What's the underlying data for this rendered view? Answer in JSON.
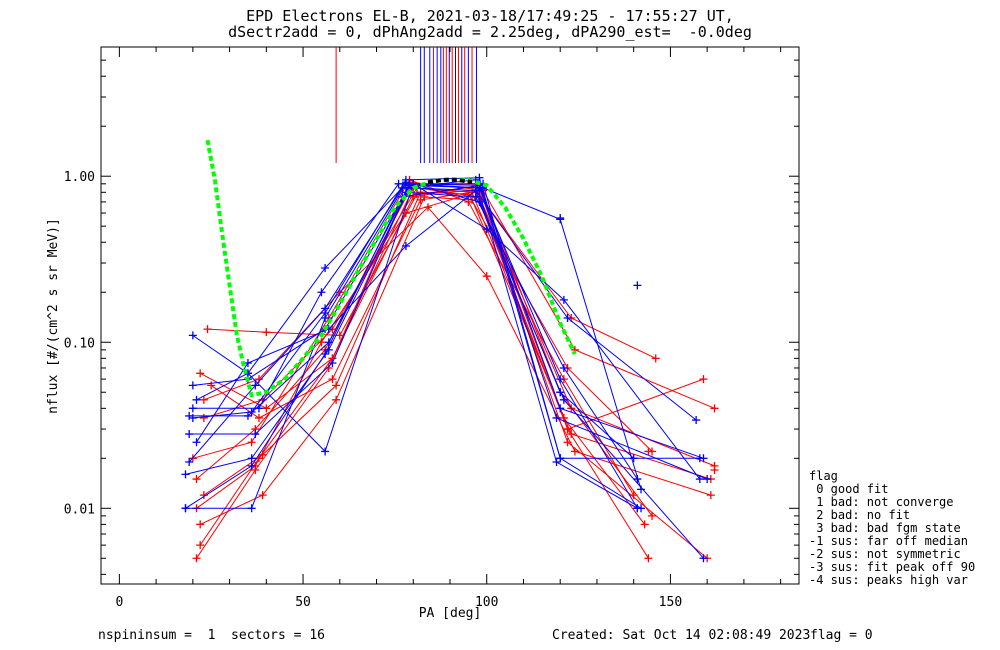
{
  "title": {
    "line1": "EPD Electrons EL-B, 2021-03-18/17:49:25 - 17:55:27 UT,",
    "line2": "dSectr2add = 0, dPhAng2add = 2.25deg, dPA290_est=  -0.0deg"
  },
  "footer": {
    "left": "nspininsum =  1  sectors = 16",
    "created": "Created: Sat Oct 14 02:08:49 2023",
    "flag": "flag = 0"
  },
  "legend": {
    "title": "flag",
    "items": [
      " 0 good fit",
      " 1 bad: not converge",
      " 2 bad: no fit",
      " 3 bad: bad fgm state",
      "-1 sus: far off median",
      "-2 sus: not symmetric",
      "-3 sus: fit peak off 90",
      "-4 sus: peaks high var"
    ]
  },
  "colors": {
    "red": "#ff0000",
    "blue": "#0000ff",
    "green": "#00ff00",
    "black": "#000000"
  },
  "chart_data": {
    "type": "line",
    "xlabel": "PA [deg]",
    "ylabel": "nflux [#/(cm^2 s sr MeV)]",
    "xlim": [
      -5,
      185
    ],
    "ylim": [
      0.0035,
      6.0
    ],
    "ylog": true,
    "xticks": [
      0,
      50,
      100,
      150
    ],
    "xtick_labels": [
      "0",
      "50",
      "100",
      "150"
    ],
    "yticks": [
      0.01,
      0.1,
      1.0
    ],
    "ytick_labels": [
      "0.01",
      "0.10",
      "1.00"
    ],
    "series": [
      {
        "color": "red",
        "x": [
          21,
          37,
          57,
          79,
          98,
          122,
          144
        ],
        "y": [
          0.005,
          0.017,
          0.07,
          0.92,
          0.83,
          0.03,
          0.005
        ]
      },
      {
        "color": "red",
        "x": [
          22,
          38,
          58,
          80,
          96,
          121,
          143
        ],
        "y": [
          0.006,
          0.02,
          0.08,
          0.85,
          0.8,
          0.035,
          0.008
        ]
      },
      {
        "color": "red",
        "x": [
          23,
          39,
          59,
          82,
          95,
          122,
          145
        ],
        "y": [
          0.012,
          0.021,
          0.055,
          0.8,
          0.78,
          0.07,
          0.022
        ]
      },
      {
        "color": "red",
        "x": [
          24,
          40,
          60,
          81,
          97,
          123,
          146
        ],
        "y": [
          0.12,
          0.115,
          0.11,
          0.78,
          0.82,
          0.14,
          0.08
        ]
      },
      {
        "color": "red",
        "x": [
          25,
          38,
          58,
          82,
          99,
          124,
          162
        ],
        "y": [
          0.055,
          0.035,
          0.06,
          0.72,
          0.82,
          0.09,
          0.04
        ]
      },
      {
        "color": "red",
        "x": [
          21,
          37,
          56,
          80,
          97,
          122,
          160
        ],
        "y": [
          0.015,
          0.03,
          0.09,
          0.9,
          0.88,
          0.025,
          0.005
        ]
      },
      {
        "color": "red",
        "x": [
          22,
          39,
          59,
          83,
          96,
          123,
          161
        ],
        "y": [
          0.008,
          0.012,
          0.045,
          0.75,
          0.72,
          0.028,
          0.015
        ]
      },
      {
        "color": "red",
        "x": [
          20,
          36,
          57,
          79,
          95,
          121,
          140
        ],
        "y": [
          0.02,
          0.025,
          0.14,
          0.95,
          0.7,
          0.06,
          0.012
        ]
      },
      {
        "color": "red",
        "x": [
          23,
          38,
          60,
          84,
          100,
          124,
          161
        ],
        "y": [
          0.045,
          0.06,
          0.2,
          0.65,
          0.25,
          0.022,
          0.012
        ]
      },
      {
        "color": "red",
        "x": [
          22,
          40,
          58,
          80,
          98,
          120,
          145
        ],
        "y": [
          0.065,
          0.04,
          0.08,
          0.75,
          0.88,
          0.05,
          0.009
        ]
      },
      {
        "color": "red",
        "x": [
          21,
          37,
          55,
          78,
          97,
          122,
          159
        ],
        "y": [
          0.01,
          0.018,
          0.1,
          0.6,
          0.8,
          0.03,
          0.06
        ]
      },
      {
        "color": "red",
        "x": [
          23,
          39,
          58,
          81,
          98,
          123,
          162
        ],
        "y": [
          0.035,
          0.045,
          0.12,
          0.85,
          0.75,
          0.04,
          0.018
        ]
      },
      {
        "color": "blue",
        "x": [
          20,
          36,
          56,
          78,
          98,
          120,
          142
        ],
        "y": [
          0.035,
          0.038,
          0.15,
          0.95,
          0.98,
          0.02,
          0.01
        ]
      },
      {
        "color": "blue",
        "x": [
          21,
          35,
          56,
          77,
          97,
          119,
          141
        ],
        "y": [
          0.045,
          0.065,
          0.28,
          0.85,
          0.95,
          0.019,
          0.01
        ]
      },
      {
        "color": "blue",
        "x": [
          18,
          36,
          56,
          78,
          99,
          120,
          158
        ],
        "y": [
          0.01,
          0.01,
          0.14,
          0.9,
          0.9,
          0.02,
          0.02
        ]
      },
      {
        "color": "blue",
        "x": [
          19,
          35,
          57,
          79,
          98,
          120,
          141
        ],
        "y": [
          0.036,
          0.036,
          0.1,
          0.88,
          0.85,
          0.06,
          0.01
        ]
      },
      {
        "color": "blue",
        "x": [
          20,
          35,
          56,
          80,
          100,
          121,
          158
        ],
        "y": [
          0.11,
          0.065,
          0.022,
          0.9,
          0.48,
          0.18,
          0.015
        ]
      },
      {
        "color": "blue",
        "x": [
          18,
          36,
          57,
          79,
          97,
          120,
          140
        ],
        "y": [
          0.016,
          0.02,
          0.09,
          0.85,
          0.82,
          0.05,
          0.02
        ]
      },
      {
        "color": "blue",
        "x": [
          19,
          37,
          56,
          78,
          98,
          121,
          159
        ],
        "y": [
          0.019,
          0.055,
          0.16,
          0.92,
          0.7,
          0.045,
          0.005
        ]
      },
      {
        "color": "blue",
        "x": [
          20,
          38,
          55,
          76,
          99,
          120,
          142
        ],
        "y": [
          0.04,
          0.04,
          0.2,
          0.9,
          0.85,
          0.55,
          0.013
        ]
      },
      {
        "color": "blue",
        "x": [
          21,
          35,
          57,
          78,
          97,
          122,
          157
        ],
        "y": [
          0.025,
          0.075,
          0.12,
          0.38,
          0.82,
          0.14,
          0.034
        ]
      },
      {
        "color": "blue",
        "x": [
          18,
          36,
          56,
          77,
          98,
          119,
          160
        ],
        "y": [
          0.01,
          0.018,
          0.085,
          0.75,
          0.88,
          0.035,
          0.015
        ]
      },
      {
        "color": "blue",
        "x": [
          19,
          37,
          58,
          78,
          97,
          121,
          141
        ],
        "y": [
          0.028,
          0.028,
          0.075,
          0.8,
          0.75,
          0.07,
          0.015
        ]
      },
      {
        "color": "blue",
        "x": [
          20,
          35,
          56,
          79,
          98,
          120,
          159
        ],
        "y": [
          0.055,
          0.06,
          0.12,
          0.88,
          0.9,
          0.04,
          0.02
        ]
      },
      {
        "color": "green",
        "dashed": true,
        "x": [
          24,
          26,
          28,
          30,
          32,
          34,
          36,
          40,
          45,
          50,
          55,
          60,
          65,
          70,
          75,
          80,
          85,
          90,
          95,
          100,
          105,
          110,
          115,
          120,
          124
        ],
        "y": [
          1.65,
          0.95,
          0.45,
          0.22,
          0.11,
          0.07,
          0.048,
          0.05,
          0.06,
          0.08,
          0.11,
          0.17,
          0.27,
          0.42,
          0.65,
          0.85,
          0.93,
          0.96,
          0.95,
          0.88,
          0.65,
          0.42,
          0.25,
          0.13,
          0.085
        ]
      },
      {
        "color": "black",
        "dashed": true,
        "x": [
          84,
          88,
          92,
          96
        ],
        "y": [
          0.92,
          0.95,
          0.95,
          0.92
        ]
      }
    ],
    "scatter": [
      {
        "color": "blue",
        "x": 141,
        "y": 0.22
      },
      {
        "color": "blue",
        "x": 120,
        "y": 0.56
      },
      {
        "color": "red",
        "x": 162,
        "y": 0.017
      },
      {
        "color": "red",
        "x": 144,
        "y": 0.022
      }
    ],
    "vertical_marks": [
      {
        "color": "red",
        "x": 59,
        "y1": 1.2,
        "y2": 6.0
      },
      {
        "color": "blue",
        "x": 82,
        "y1": 1.2,
        "y2": 6.0
      },
      {
        "color": "blue",
        "x": 83,
        "y1": 1.2,
        "y2": 6.0
      },
      {
        "color": "blue",
        "x": 84.5,
        "y1": 1.2,
        "y2": 6.0
      },
      {
        "color": "red",
        "x": 85.5,
        "y1": 1.2,
        "y2": 6.0
      },
      {
        "color": "blue",
        "x": 86.5,
        "y1": 1.2,
        "y2": 6.0
      },
      {
        "color": "blue",
        "x": 87.5,
        "y1": 1.2,
        "y2": 6.0
      },
      {
        "color": "red",
        "x": 88.2,
        "y1": 1.2,
        "y2": 6.0
      },
      {
        "color": "red",
        "x": 89,
        "y1": 1.2,
        "y2": 6.0
      },
      {
        "color": "blue",
        "x": 89.8,
        "y1": 1.2,
        "y2": 6.0
      },
      {
        "color": "red",
        "x": 90.6,
        "y1": 1.2,
        "y2": 6.0
      },
      {
        "color": "blue",
        "x": 91.5,
        "y1": 1.2,
        "y2": 6.0
      },
      {
        "color": "red",
        "x": 92.3,
        "y1": 1.2,
        "y2": 6.0
      },
      {
        "color": "blue",
        "x": 93.2,
        "y1": 1.2,
        "y2": 6.0
      },
      {
        "color": "red",
        "x": 94,
        "y1": 1.2,
        "y2": 6.0
      },
      {
        "color": "blue",
        "x": 95,
        "y1": 1.2,
        "y2": 6.0
      },
      {
        "color": "red",
        "x": 96,
        "y1": 1.2,
        "y2": 6.0
      },
      {
        "color": "blue",
        "x": 97.2,
        "y1": 1.2,
        "y2": 6.0
      }
    ]
  }
}
